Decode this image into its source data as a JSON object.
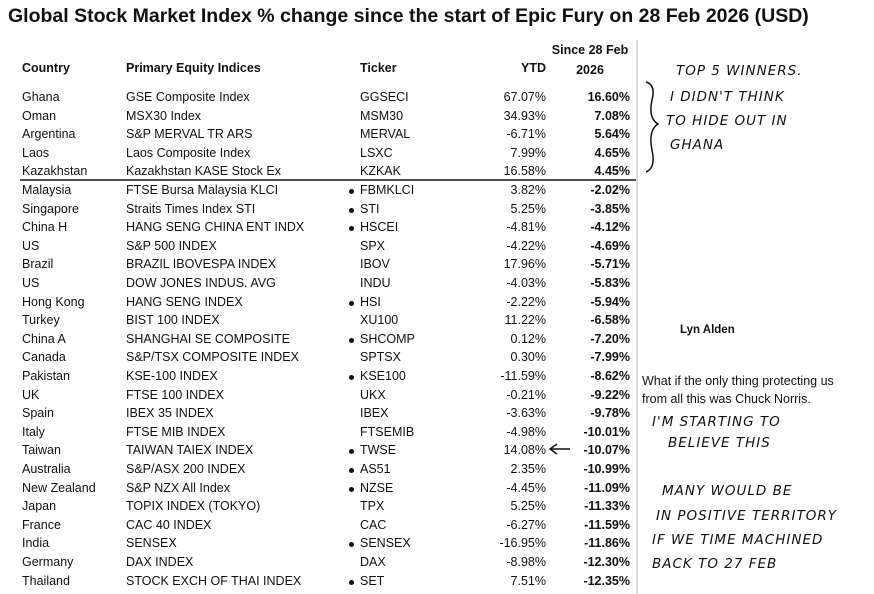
{
  "title": "Global Stock Market Index % change since the start of Epic Fury on 28 Feb 2026 (USD)",
  "table": {
    "headers": [
      "Country",
      "Primary Equity Indices",
      "Ticker",
      "YTD",
      "Since 28 Feb 2026"
    ],
    "rows": [
      {
        "country": "Ghana",
        "index": "GSE Composite Index",
        "ticker": "GGSECI",
        "ytd": "67.07%",
        "since": "16.60%"
      },
      {
        "country": "Oman",
        "index": "MSX30 Index",
        "ticker": "MSM30",
        "ytd": "34.93%",
        "since": "7.08%"
      },
      {
        "country": "Argentina",
        "index": "S&P MERVAL TR ARS",
        "ticker": "MERVAL",
        "ytd": "-6.71%",
        "since": "5.64%"
      },
      {
        "country": "Laos",
        "index": "Laos Composite Index",
        "ticker": "LSXC",
        "ytd": "7.99%",
        "since": "4.65%"
      },
      {
        "country": "Kazakhstan",
        "index": "Kazakhstan KASE Stock Ex",
        "ticker": "KZKAK",
        "ytd": "16.58%",
        "since": "4.45%"
      },
      {
        "country": "Malaysia",
        "index": "FTSE Bursa Malaysia KLCI",
        "ticker": "FBMKLCI",
        "ytd": "3.82%",
        "since": "-2.02%",
        "marked": true
      },
      {
        "country": "Singapore",
        "index": "Straits Times Index STI",
        "ticker": "STI",
        "ytd": "5.25%",
        "since": "-3.85%",
        "marked": true
      },
      {
        "country": "China H",
        "index": "HANG SENG CHINA ENT INDX",
        "ticker": "HSCEI",
        "ytd": "-4.81%",
        "since": "-4.12%",
        "marked": true
      },
      {
        "country": "US",
        "index": "S&P 500 INDEX",
        "ticker": "SPX",
        "ytd": "-4.22%",
        "since": "-4.69%"
      },
      {
        "country": "Brazil",
        "index": "BRAZIL IBOVESPA INDEX",
        "ticker": "IBOV",
        "ytd": "17.96%",
        "since": "-5.71%"
      },
      {
        "country": "US",
        "index": "DOW JONES INDUS. AVG",
        "ticker": "INDU",
        "ytd": "-4.03%",
        "since": "-5.83%"
      },
      {
        "country": "Hong Kong",
        "index": "HANG SENG INDEX",
        "ticker": "HSI",
        "ytd": "-2.22%",
        "since": "-5.94%",
        "marked": true
      },
      {
        "country": "Turkey",
        "index": "BIST 100 INDEX",
        "ticker": "XU100",
        "ytd": "11.22%",
        "since": "-6.58%"
      },
      {
        "country": "China A",
        "index": "SHANGHAI SE COMPOSITE",
        "ticker": "SHCOMP",
        "ytd": "0.12%",
        "since": "-7.20%",
        "marked": true
      },
      {
        "country": "Canada",
        "index": "S&P/TSX COMPOSITE INDEX",
        "ticker": "SPTSX",
        "ytd": "0.30%",
        "since": "-7.99%"
      },
      {
        "country": "Pakistan",
        "index": "KSE-100 INDEX",
        "ticker": "KSE100",
        "ytd": "-11.59%",
        "since": "-8.62%",
        "marked": true
      },
      {
        "country": "UK",
        "index": "FTSE 100 INDEX",
        "ticker": "UKX",
        "ytd": "-0.21%",
        "since": "-9.22%"
      },
      {
        "country": "Spain",
        "index": "IBEX 35 INDEX",
        "ticker": "IBEX",
        "ytd": "-3.63%",
        "since": "-9.78%"
      },
      {
        "country": "Italy",
        "index": "FTSE MIB INDEX",
        "ticker": "FTSEMIB",
        "ytd": "-4.98%",
        "since": "-10.01%"
      },
      {
        "country": "Taiwan",
        "index": "TAIWAN TAIEX INDEX",
        "ticker": "TWSE",
        "ytd": "14.08%",
        "since": "-10.07%",
        "marked": true
      },
      {
        "country": "Australia",
        "index": "S&P/ASX 200 INDEX",
        "ticker": "AS51",
        "ytd": "2.35%",
        "since": "-10.99%",
        "marked": true
      },
      {
        "country": "New Zealand",
        "index": "S&P NZX All Index",
        "ticker": "NZSE",
        "ytd": "-4.45%",
        "since": "-11.09%",
        "marked": true
      },
      {
        "country": "Japan",
        "index": "TOPIX INDEX (TOKYO)",
        "ticker": "TPX",
        "ytd": "5.25%",
        "since": "-11.33%"
      },
      {
        "country": "France",
        "index": "CAC 40 INDEX",
        "ticker": "CAC",
        "ytd": "-6.27%",
        "since": "-11.59%"
      },
      {
        "country": "India",
        "index": "SENSEX",
        "ticker": "SENSEX",
        "ytd": "-16.95%",
        "since": "-11.86%",
        "marked": true
      },
      {
        "country": "Germany",
        "index": "DAX INDEX",
        "ticker": "DAX",
        "ytd": "-8.98%",
        "since": "-12.30%"
      },
      {
        "country": "Thailand",
        "index": "STOCK EXCH OF THAI INDEX",
        "ticker": "SET",
        "ytd": "7.51%",
        "since": "-12.35%",
        "marked": true
      }
    ]
  },
  "annotations": {
    "winners_note": [
      "TOP 5 WINNERS.",
      "I DIDN'T THINK",
      "TO HIDE OUT IN",
      "GHANA"
    ],
    "author": "Lyn Alden",
    "chuck_note": [
      "What if the only thing protecting us",
      "from all this was Chuck Norris."
    ],
    "believe_note": [
      "I'M STARTING TO",
      "BELIEVE THIS"
    ],
    "positive_note": [
      "MANY WOULD BE",
      "IN POSITIVE TERRITORY",
      "IF WE TIME MACHINED",
      "BACK TO 27 FEB"
    ]
  }
}
